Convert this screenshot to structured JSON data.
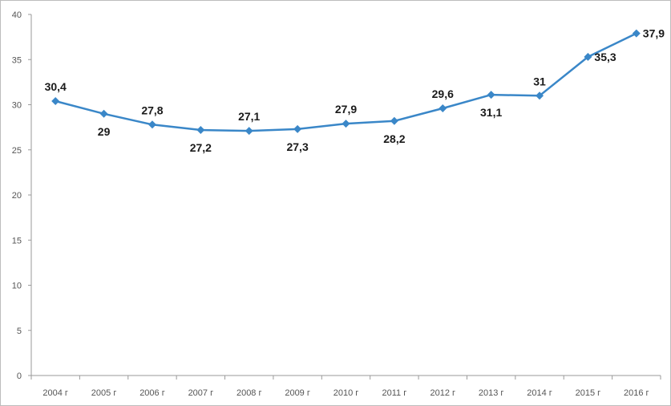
{
  "chart_data": {
    "type": "line",
    "title": "",
    "xlabel": "",
    "ylabel": "",
    "categories": [
      "2004 г",
      "2005 г",
      "2006 г",
      "2007 г",
      "2008 г",
      "2009 г",
      "2010 г",
      "2011 г",
      "2012 г",
      "2013 г",
      "2014 г",
      "2015 г",
      "2016 г"
    ],
    "series": [
      {
        "values": [
          30.4,
          29,
          27.8,
          27.2,
          27.1,
          27.3,
          27.9,
          28.2,
          29.6,
          31.1,
          31,
          35.3,
          37.9
        ],
        "labels": [
          "30,4",
          "29",
          "27,8",
          "27,2",
          "27,1",
          "27,3",
          "27,9",
          "28,2",
          "29,6",
          "31,1",
          "31",
          "35,3",
          "37,9"
        ],
        "label_side": [
          "above",
          "below",
          "above",
          "below",
          "above",
          "below",
          "above",
          "below",
          "above",
          "below",
          "above",
          "right",
          "right"
        ],
        "color": "#3a87c8",
        "marker": "diamond"
      }
    ],
    "ylim": [
      0,
      40
    ],
    "yticks": [
      0,
      5,
      10,
      15,
      20,
      25,
      30,
      35,
      40
    ],
    "grid": false,
    "legend": "none"
  }
}
